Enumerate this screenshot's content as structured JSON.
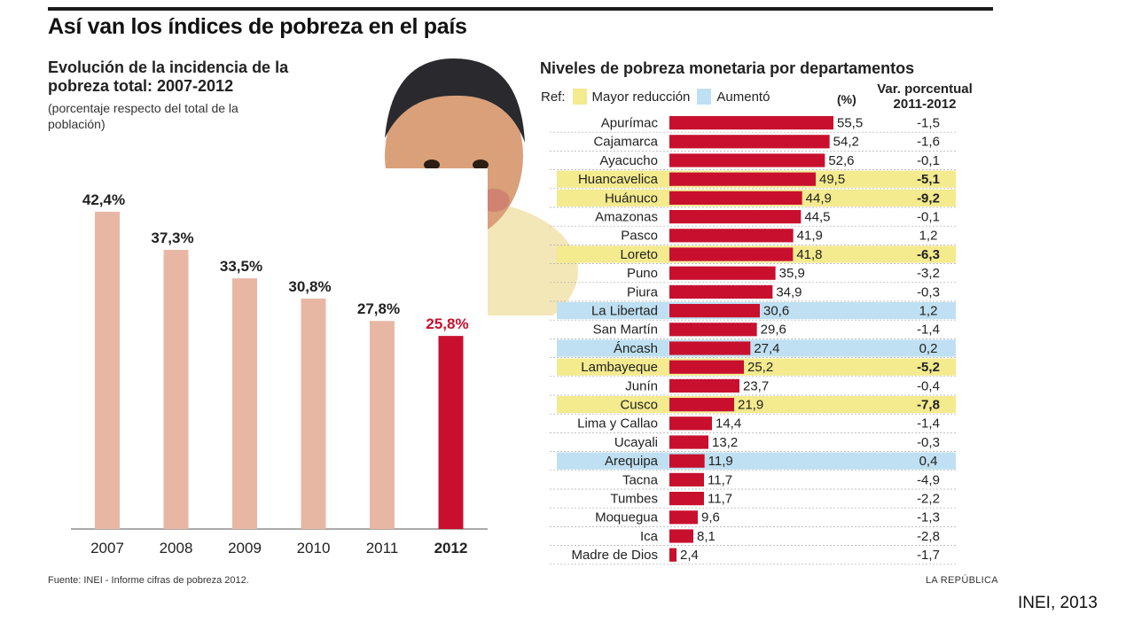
{
  "main_title": "Así van los índices de pobreza en el país",
  "left_panel": {
    "title": "Evolución de la incidencia de la pobreza total: 2007-2012",
    "subtitle": "(porcentaje respecto del total de la población)"
  },
  "right_panel": {
    "title": "Niveles de pobreza monetaria por departamentos",
    "ref_label": "Ref:",
    "legend_reduction": "Mayor reducción",
    "legend_increase": "Aumentó",
    "col_pct": "(%)",
    "col_var_line1": "Var. porcentual",
    "col_var_line2": "2011-2012"
  },
  "footer": {
    "source": "Fuente: INEI - Informe cifras de pobreza 2012.",
    "brand": "LA REPÚBLICA"
  },
  "credit": "INEI, 2013",
  "colors": {
    "bar_past": "#e8b7a4",
    "bar_highlight": "#c8102e",
    "reduction": "#f4ea8e",
    "increase": "#bfe0f2"
  },
  "chart_data": [
    {
      "type": "bar",
      "categories": [
        "2007",
        "2008",
        "2009",
        "2010",
        "2011",
        "2012"
      ],
      "values": [
        42.4,
        37.3,
        33.5,
        30.8,
        27.8,
        25.8
      ],
      "labels": [
        "42,4%",
        "37,3%",
        "33,5%",
        "30,8%",
        "27,8%",
        "25,8%"
      ],
      "highlight_index": 5,
      "ylim": [
        0,
        45
      ]
    },
    {
      "type": "bar",
      "orientation": "horizontal",
      "categories": [
        "Apurímac",
        "Cajamarca",
        "Ayacucho",
        "Huancavelica",
        "Huánuco",
        "Amazonas",
        "Pasco",
        "Loreto",
        "Puno",
        "Piura",
        "La Libertad",
        "San Martín",
        "Áncash",
        "Lambayeque",
        "Junín",
        "Cusco",
        "Lima y Callao",
        "Ucayali",
        "Arequipa",
        "Tacna",
        "Tumbes",
        "Moquegua",
        "Ica",
        "Madre de Dios"
      ],
      "values": [
        55.5,
        54.2,
        52.6,
        49.5,
        44.9,
        44.5,
        41.9,
        41.8,
        35.9,
        34.9,
        30.6,
        29.6,
        27.4,
        25.2,
        23.7,
        21.9,
        14.4,
        13.2,
        11.9,
        11.7,
        11.7,
        9.6,
        8.1,
        2.4
      ],
      "value_labels": [
        "55,5",
        "54,2",
        "52,6",
        "49,5",
        "44,9",
        "44,5",
        "41,9",
        "41,8",
        "35,9",
        "34,9",
        "30,6",
        "29,6",
        "27,4",
        "25,2",
        "23,7",
        "21,9",
        "14,4",
        "13,2",
        "11,9",
        "11,7",
        "11,7",
        "9,6",
        "8,1",
        "2,4"
      ],
      "variation": [
        -1.5,
        -1.6,
        -0.1,
        -5.1,
        -9.2,
        -0.1,
        1.2,
        -6.3,
        -3.2,
        -0.3,
        1.2,
        -1.4,
        0.2,
        -5.2,
        -0.4,
        -7.8,
        -1.4,
        -0.3,
        0.4,
        -4.9,
        -2.2,
        -1.3,
        -2.8,
        -1.7
      ],
      "variation_labels": [
        "-1,5",
        "-1,6",
        "-0,1",
        "-5,1",
        "-9,2",
        "-0,1",
        "1,2",
        "-6,3",
        "-3,2",
        "-0,3",
        "1,2",
        "-1,4",
        "0,2",
        "-5,2",
        "-0,4",
        "-7,8",
        "-1,4",
        "-0,3",
        "0,4",
        "-4,9",
        "-2,2",
        "-1,3",
        "-2,8",
        "-1,7"
      ],
      "highlight": [
        "",
        "",
        "",
        "reduction",
        "reduction",
        "",
        "",
        "reduction",
        "",
        "",
        "increase",
        "",
        "increase",
        "reduction",
        "",
        "reduction",
        "",
        "",
        "increase",
        "",
        "",
        "",
        "",
        ""
      ],
      "xlim": [
        0,
        60
      ]
    }
  ]
}
